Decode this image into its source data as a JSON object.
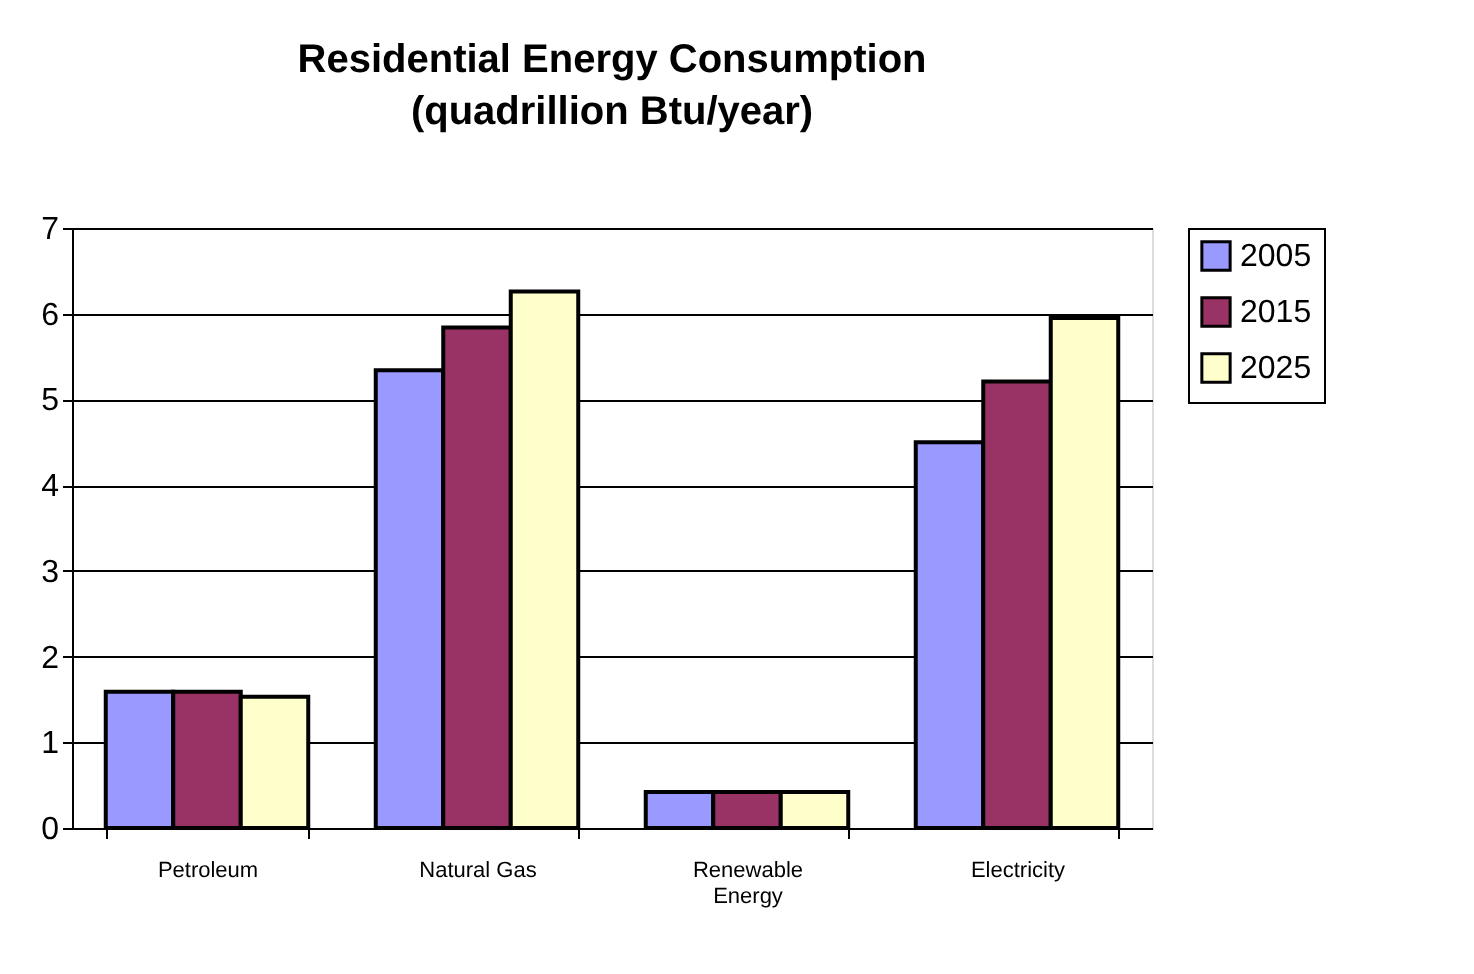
{
  "chart_data": {
    "type": "bar",
    "title": "Residential Energy Consumption (quadrillion Btu/year)",
    "categories": [
      "Petroleum",
      "Natural Gas",
      "Renewable Energy",
      "Electricity"
    ],
    "series": [
      {
        "name": "2005",
        "color": "#9999ff",
        "values": [
          1.59,
          5.34,
          0.42,
          4.5
        ]
      },
      {
        "name": "2015",
        "color": "#993366",
        "values": [
          1.59,
          5.84,
          0.42,
          5.21
        ]
      },
      {
        "name": "2025",
        "color": "#ffffcc",
        "values": [
          1.53,
          6.26,
          0.42,
          5.95
        ]
      }
    ],
    "ylim": [
      0,
      7
    ],
    "yticks": [
      0,
      1,
      2,
      3,
      4,
      5,
      6,
      7
    ],
    "grid": "y",
    "legend": "right"
  }
}
